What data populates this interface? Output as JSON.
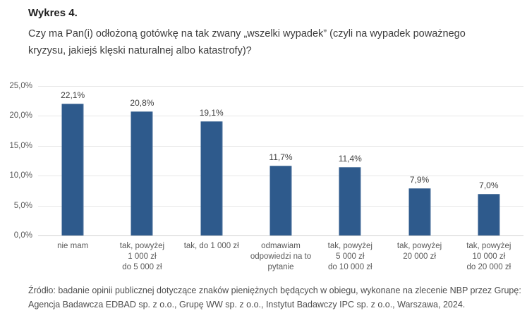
{
  "header": {
    "label": "Wykres 4.",
    "question": "Czy ma Pan(i) odłożoną gotówkę na tak zwany „wszelki wypadek” (czyli na wypadek poważnego kryzysu, jakiejś klęski naturalnej albo katastrofy)?"
  },
  "chart_data": {
    "type": "bar",
    "categories": [
      "nie mam",
      "tak, powyżej\n1 000 zł\ndo 5 000 zł",
      "tak, do 1 000 zł",
      "odmawiam\nodpowiedzi na to\npytanie",
      "tak, powyżej\n5 000 zł\ndo 10 000 zł",
      "tak, powyżej\n20 000 zł",
      "tak, powyżej\n10 000 zł\ndo 20 000 zł"
    ],
    "values": [
      22.1,
      20.8,
      19.1,
      11.7,
      11.4,
      7.9,
      7.0
    ],
    "value_labels": [
      "22,1%",
      "20,8%",
      "19,1%",
      "11,7%",
      "11,4%",
      "7,9%",
      "7,0%"
    ],
    "y_ticks": [
      {
        "value": 0,
        "label": "0,0%"
      },
      {
        "value": 5,
        "label": "5,0%"
      },
      {
        "value": 10,
        "label": "10,0%"
      },
      {
        "value": 15,
        "label": "15,0%"
      },
      {
        "value": 20,
        "label": "20,0%"
      },
      {
        "value": 25,
        "label": "25,0%"
      }
    ],
    "ylim": [
      0,
      25
    ],
    "grid": true,
    "legend": "none",
    "bar_color": "#2e5a8c",
    "title": "",
    "xlabel": "",
    "ylabel": ""
  },
  "footnote": "Źródło: badanie opinii publicznej dotyczące znaków pieniężnych będących w obiegu, wykonane na zlecenie NBP przez Grupę: Agencja Badawcza EDBAD sp. z o.o., Grupę WW sp. z o.o., Instytut Badawczy IPC sp. z o.o., Warszawa, 2024."
}
